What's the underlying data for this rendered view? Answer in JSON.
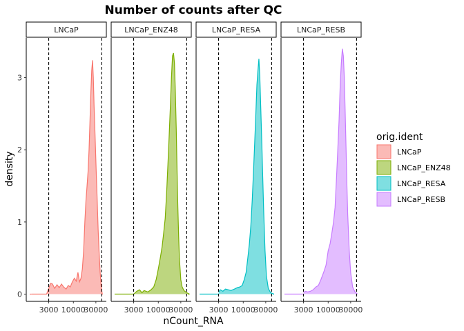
{
  "chart_data": {
    "type": "area",
    "title": "Number of counts after QC",
    "xlabel": "nCount_RNA",
    "ylabel": "density",
    "x_scale": "log10",
    "xlim": [
      1000,
      50000
    ],
    "ylim": [
      -0.1,
      3.55
    ],
    "x_ticks": [
      3000,
      10000,
      30000
    ],
    "x_tick_labels": [
      "3000",
      "10000",
      "30000"
    ],
    "y_ticks": [
      0,
      1,
      2,
      3
    ],
    "y_tick_labels": [
      "0",
      "1",
      "2",
      "3"
    ],
    "cutoffs": [
      3000,
      40000
    ],
    "grid": false,
    "legend": {
      "title": "orig.ident",
      "placement": "right"
    },
    "series": [
      {
        "name": "LNCaP",
        "fill": "#F8766D",
        "stroke": "#F8766D",
        "x": [
          1300,
          2700,
          3000,
          3300,
          3600,
          4000,
          4500,
          5000,
          5600,
          6200,
          7000,
          7800,
          8600,
          9500,
          10500,
          11500,
          12500,
          13500,
          14500,
          15500,
          16500,
          17500,
          18500,
          19500,
          20500,
          21500,
          22500,
          23500,
          24500,
          25500,
          26500,
          27500,
          28500,
          29500,
          30500,
          32000,
          33500,
          35000,
          37000,
          39000,
          41000
        ],
        "y": [
          0,
          0,
          0.08,
          0.15,
          0.14,
          0.08,
          0.13,
          0.09,
          0.14,
          0.1,
          0.07,
          0.12,
          0.1,
          0.17,
          0.22,
          0.18,
          0.3,
          0.17,
          0.22,
          0.35,
          0.6,
          1.0,
          1.3,
          1.5,
          1.7,
          2.0,
          2.4,
          2.8,
          3.1,
          3.24,
          3.0,
          2.6,
          2.3,
          2.0,
          1.7,
          1.3,
          0.9,
          0.6,
          0.3,
          0.1,
          0
        ]
      },
      {
        "name": "LNCaP_ENZ48",
        "fill": "#7CAE00",
        "stroke": "#7CAE00",
        "x": [
          3000,
          3500,
          4000,
          4500,
          5000,
          6000,
          7000,
          8000,
          9000,
          10000,
          11000,
          12000,
          13000,
          14000,
          15000,
          16000,
          17000,
          18000,
          19000,
          20000,
          21000,
          22000,
          23000,
          24000,
          25000,
          26000,
          27000,
          28000,
          30000,
          32000,
          35000,
          40000,
          46000
        ],
        "y": [
          0,
          0.04,
          0.06,
          0.02,
          0.05,
          0.03,
          0.06,
          0.1,
          0.2,
          0.35,
          0.5,
          0.65,
          0.85,
          1.05,
          1.4,
          1.8,
          2.2,
          2.6,
          3.0,
          3.3,
          3.34,
          3.2,
          2.8,
          2.3,
          1.7,
          1.2,
          0.8,
          0.5,
          0.2,
          0.1,
          0.05,
          0.02,
          0
        ]
      },
      {
        "name": "LNCaP_RESA",
        "fill": "#00BFC4",
        "stroke": "#00BFC4",
        "x": [
          3000,
          3300,
          3700,
          4200,
          4800,
          5500,
          6500,
          7500,
          8500,
          9500,
          10500,
          11500,
          12500,
          13500,
          14500,
          15500,
          16500,
          17500,
          18500,
          19500,
          20500,
          21500,
          22500,
          23500,
          25000,
          27000,
          29000,
          31000,
          34000,
          38000,
          45000
        ],
        "y": [
          0.03,
          0.06,
          0.04,
          0.07,
          0.06,
          0.05,
          0.07,
          0.09,
          0.1,
          0.12,
          0.2,
          0.3,
          0.5,
          0.7,
          0.95,
          1.3,
          1.7,
          2.1,
          2.5,
          2.9,
          3.1,
          3.26,
          3.0,
          2.6,
          2.0,
          1.2,
          0.6,
          0.25,
          0.08,
          0.02,
          0
        ]
      },
      {
        "name": "LNCaP_RESB",
        "fill": "#C77CFF",
        "stroke": "#C77CFF",
        "x": [
          3000,
          3300,
          3700,
          4200,
          4800,
          5500,
          6200,
          7000,
          8000,
          9000,
          10000,
          11000,
          12000,
          13000,
          14000,
          15000,
          16000,
          17000,
          18000,
          19000,
          20000,
          21000,
          22000,
          23000,
          24000,
          25000,
          26000,
          28000,
          30000,
          33000,
          37000,
          42000
        ],
        "y": [
          0.02,
          0.04,
          0.03,
          0.04,
          0.06,
          0.1,
          0.12,
          0.2,
          0.3,
          0.4,
          0.6,
          0.7,
          0.85,
          1.0,
          1.2,
          1.6,
          2.0,
          2.4,
          2.9,
          3.2,
          3.4,
          3.3,
          3.0,
          2.5,
          2.0,
          1.5,
          1.1,
          0.6,
          0.3,
          0.1,
          0.03,
          0
        ]
      }
    ]
  }
}
